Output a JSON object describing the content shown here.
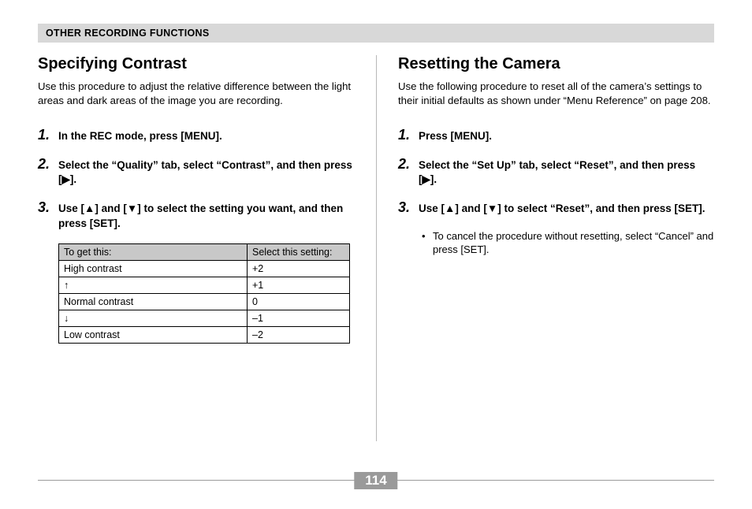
{
  "header": "OTHER RECORDING FUNCTIONS",
  "page_number": "114",
  "left": {
    "title": "Specifying Contrast",
    "intro": "Use this procedure to adjust the relative difference between the light areas and dark areas of the image you are recording.",
    "steps": [
      {
        "num": "1.",
        "text": "In the REC mode, press [MENU]."
      },
      {
        "num": "2.",
        "text": "Select the “Quality” tab, select “Contrast”, and then press [▶]."
      },
      {
        "num": "3.",
        "text": "Use [▲] and [▼] to select the setting you want, and then press [SET]."
      }
    ],
    "table": {
      "head_left": "To get this:",
      "head_right": "Select this setting:",
      "rows": [
        {
          "label": "High contrast",
          "value": "+2"
        },
        {
          "label": "↑",
          "value": "+1"
        },
        {
          "label": "Normal contrast",
          "value": "  0"
        },
        {
          "label": "↓",
          "value": "–1"
        },
        {
          "label": "Low contrast",
          "value": "–2"
        }
      ]
    }
  },
  "right": {
    "title": "Resetting the Camera",
    "intro": "Use the following procedure to reset all of the camera’s settings to their initial defaults as shown under “Menu Reference” on page 208.",
    "steps": [
      {
        "num": "1.",
        "text": "Press [MENU]."
      },
      {
        "num": "2.",
        "text": "Select the “Set Up” tab, select “Reset”, and then press [▶]."
      },
      {
        "num": "3.",
        "text": "Use [▲] and [▼] to select “Reset”, and then press [SET]."
      }
    ],
    "sub_bullet": "To cancel the procedure without resetting, select “Cancel” and press [SET]."
  }
}
